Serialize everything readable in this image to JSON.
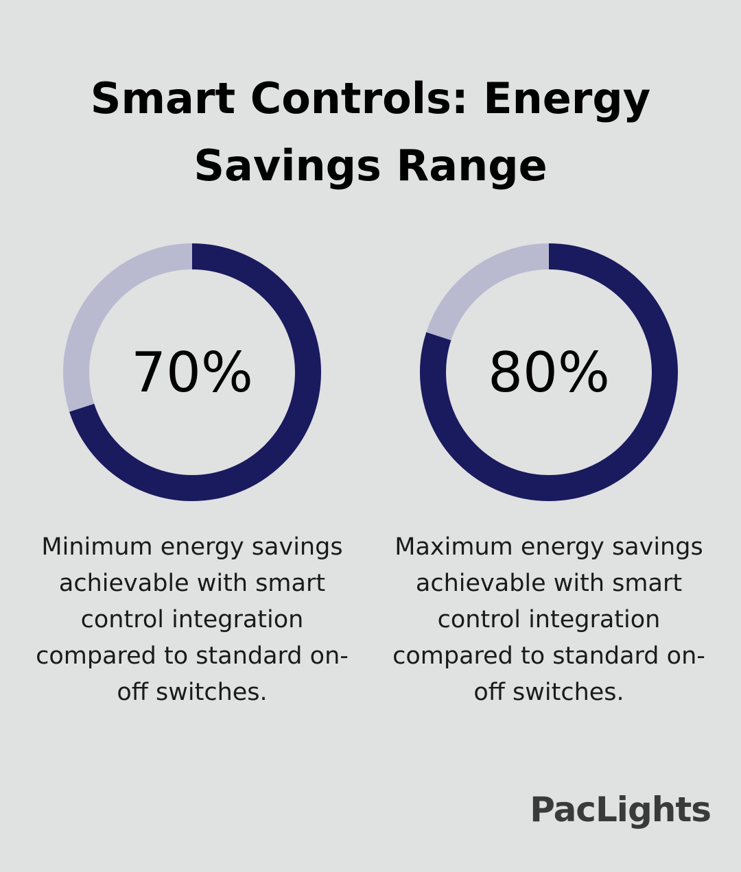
{
  "title": "Smart Controls: Energy Savings Range",
  "brand": "PacLights",
  "chart_data": [
    {
      "type": "donut",
      "values": [
        70
      ],
      "value_labels": [
        "70%"
      ],
      "color": "#1a1a5e",
      "track_color": "#b9bad0",
      "description": "Minimum energy savings achievable with smart control integration compared to standard on-off switches."
    },
    {
      "type": "donut",
      "values": [
        80
      ],
      "value_labels": [
        "80%"
      ],
      "color": "#1a1a5e",
      "track_color": "#b9bad0",
      "description": "Maximum energy savings achievable with smart control integration compared to standard on-off switches."
    }
  ]
}
